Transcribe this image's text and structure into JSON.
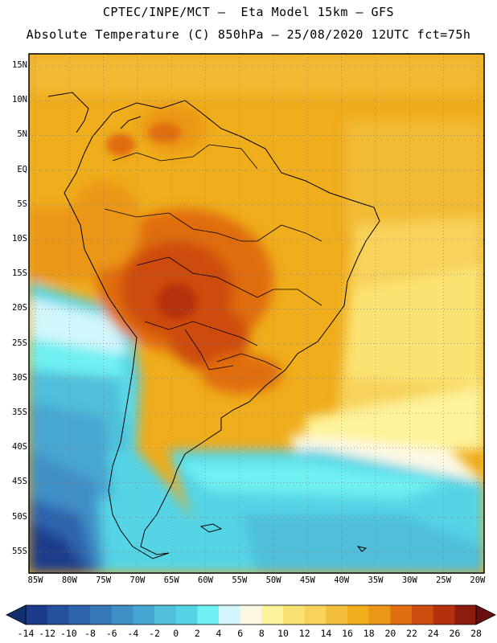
{
  "header": {
    "line1": "CPTEC/INPE/MCT –  Eta Model 15km – GFS",
    "line2": "Absolute Temperature (C) 850hPa – 25/08/2020 12UTC fct=75h"
  },
  "map": {
    "lat_labels": [
      "15N",
      "10N",
      "5N",
      "EQ",
      "5S",
      "10S",
      "15S",
      "20S",
      "25S",
      "30S",
      "35S",
      "40S",
      "45S",
      "50S",
      "55S"
    ],
    "lon_labels": [
      "85W",
      "80W",
      "75W",
      "70W",
      "65W",
      "60W",
      "55W",
      "50W",
      "45W",
      "40W",
      "35W",
      "30W",
      "25W",
      "20W"
    ]
  },
  "colorbar": {
    "labels": [
      "-14",
      "-12",
      "-10",
      "-8",
      "-6",
      "-4",
      "-2",
      "0",
      "2",
      "4",
      "6",
      "8",
      "10",
      "12",
      "14",
      "16",
      "18",
      "20",
      "22",
      "24",
      "26",
      "28"
    ],
    "colors": [
      "#1a3c8a",
      "#25509c",
      "#2e63ae",
      "#3877b8",
      "#3f8fc6",
      "#46a6d2",
      "#4fbfdc",
      "#55d4e6",
      "#6ff0f2",
      "#d2f6fb",
      "#fdf8e4",
      "#fdf39a",
      "#fbe373",
      "#f8d25a",
      "#f3be3c",
      "#f0ad1c",
      "#eb9616",
      "#e06d10",
      "#cd4c0f",
      "#b5300c",
      "#8c1c0b"
    ],
    "under_color": "#12306e",
    "over_color": "#6a0f10"
  }
}
